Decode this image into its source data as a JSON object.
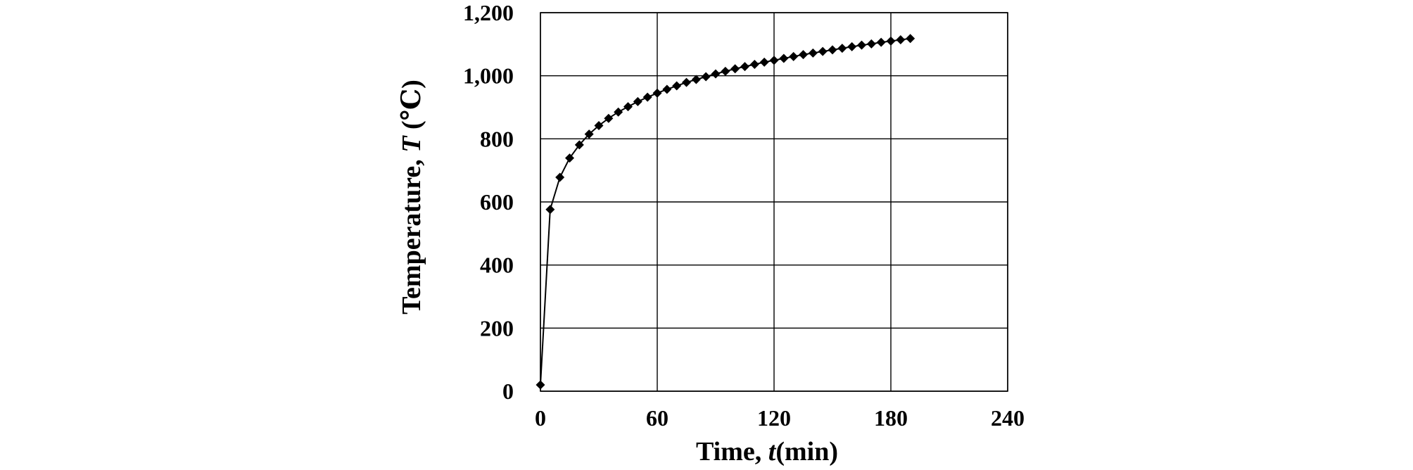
{
  "chart_data": {
    "type": "line",
    "title": "",
    "xlabel": {
      "prefix": "Time, ",
      "italic": "t",
      "suffix": "(min)"
    },
    "ylabel": {
      "prefix": "Temperature, ",
      "italic": "T",
      "suffix": " (℃)"
    },
    "xlim": [
      0,
      240
    ],
    "ylim": [
      0,
      1200
    ],
    "x_ticks": [
      0,
      60,
      120,
      180,
      240
    ],
    "x_tick_labels": [
      "0",
      "60",
      "120",
      "180",
      "240"
    ],
    "y_ticks": [
      0,
      200,
      400,
      600,
      800,
      1000,
      1200
    ],
    "y_tick_labels": [
      "0",
      "200",
      "400",
      "600",
      "800",
      "1,000",
      "1,200"
    ],
    "grid": true,
    "legend": "none",
    "colors": {
      "line": "#000000",
      "marker": "#000000",
      "grid": "#000000"
    },
    "marker": "diamond",
    "series": [
      {
        "x": [
          0,
          5,
          10,
          15,
          20,
          25,
          30,
          35,
          40,
          45,
          50,
          55,
          60,
          65,
          70,
          75,
          80,
          85,
          90,
          95,
          100,
          105,
          110,
          115,
          120,
          125,
          130,
          135,
          140,
          145,
          150,
          155,
          160,
          165,
          170,
          175,
          180,
          185,
          190
        ],
        "y": [
          20,
          576,
          678,
          739,
          781,
          815,
          842,
          865,
          885,
          902,
          918,
          932,
          945,
          957,
          968,
          979,
          988,
          997,
          1006,
          1014,
          1022,
          1029,
          1036,
          1043,
          1049,
          1055,
          1061,
          1067,
          1072,
          1077,
          1082,
          1087,
          1092,
          1097,
          1101,
          1106,
          1110,
          1114,
          1118
        ]
      }
    ]
  }
}
